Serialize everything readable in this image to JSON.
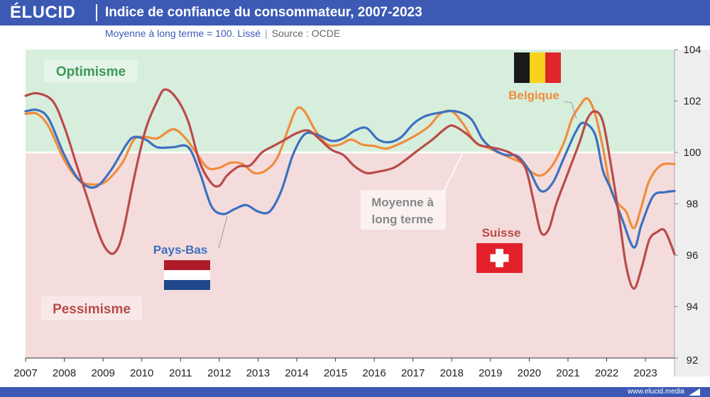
{
  "header": {
    "logo": "ÉLUCID",
    "title": "Indice de confiance du consommateur, 2007-2023",
    "subtitle": "Moyenne à long terme = 100. Lissé",
    "source": "Source : OCDE"
  },
  "footer": {
    "url": "www.elucid.media"
  },
  "colors": {
    "header": "#3c5ab4",
    "optimism_zone": "#d7eedc",
    "pessimism_zone": "#f4dcdc",
    "optimism_text": "#3a9a55",
    "pessimism_text": "#b94a4a",
    "mean_line": "#ffffff"
  },
  "chart_data": {
    "type": "line",
    "title": "Indice de confiance du consommateur, 2007-2023",
    "subtitle": "Moyenne à long terme = 100. Lissé",
    "xlim": [
      2007,
      2023.75
    ],
    "ylim": [
      92,
      104
    ],
    "x_ticks": [
      "2007",
      "2008",
      "2009",
      "2010",
      "2011",
      "2012",
      "2013",
      "2014",
      "2015",
      "2016",
      "2017",
      "2018",
      "2019",
      "2020",
      "2021",
      "2022",
      "2023"
    ],
    "y_ticks": [
      "92",
      "94",
      "96",
      "98",
      "100",
      "102",
      "104"
    ],
    "y_axis_side": "right",
    "grid": false,
    "reference_line": {
      "y": 100,
      "label_line1": "Moyenne à",
      "label_line2": "long terme"
    },
    "zones": [
      {
        "label": "Optimisme",
        "from": 100,
        "to": 104
      },
      {
        "label": "Pessimisme",
        "from": 92,
        "to": 100
      }
    ],
    "series": [
      {
        "name": "Belgique",
        "color": "#f08c3c",
        "flag": "belgium",
        "points": [
          [
            2007.0,
            101.5
          ],
          [
            2007.3,
            101.5
          ],
          [
            2007.6,
            101.0
          ],
          [
            2008.0,
            99.7
          ],
          [
            2008.4,
            98.9
          ],
          [
            2008.8,
            98.75
          ],
          [
            2009.1,
            98.9
          ],
          [
            2009.5,
            99.6
          ],
          [
            2009.8,
            100.5
          ],
          [
            2010.1,
            100.6
          ],
          [
            2010.4,
            100.55
          ],
          [
            2010.8,
            100.9
          ],
          [
            2011.1,
            100.6
          ],
          [
            2011.4,
            100.0
          ],
          [
            2011.7,
            99.4
          ],
          [
            2012.0,
            99.4
          ],
          [
            2012.3,
            99.6
          ],
          [
            2012.6,
            99.55
          ],
          [
            2012.9,
            99.2
          ],
          [
            2013.2,
            99.3
          ],
          [
            2013.5,
            99.8
          ],
          [
            2013.8,
            101.0
          ],
          [
            2014.0,
            101.7
          ],
          [
            2014.2,
            101.6
          ],
          [
            2014.5,
            100.8
          ],
          [
            2014.8,
            100.3
          ],
          [
            2015.1,
            100.3
          ],
          [
            2015.4,
            100.5
          ],
          [
            2015.7,
            100.3
          ],
          [
            2016.0,
            100.25
          ],
          [
            2016.3,
            100.15
          ],
          [
            2016.6,
            100.3
          ],
          [
            2017.0,
            100.6
          ],
          [
            2017.4,
            101.0
          ],
          [
            2017.7,
            101.5
          ],
          [
            2018.0,
            101.6
          ],
          [
            2018.3,
            101.1
          ],
          [
            2018.6,
            100.4
          ],
          [
            2018.9,
            100.2
          ],
          [
            2019.2,
            100.0
          ],
          [
            2019.5,
            99.8
          ],
          [
            2019.8,
            99.6
          ],
          [
            2020.0,
            99.3
          ],
          [
            2020.3,
            99.1
          ],
          [
            2020.6,
            99.5
          ],
          [
            2020.9,
            100.4
          ],
          [
            2021.1,
            101.3
          ],
          [
            2021.3,
            101.8
          ],
          [
            2021.5,
            102.1
          ],
          [
            2021.7,
            101.5
          ],
          [
            2021.9,
            100.2
          ],
          [
            2022.1,
            98.6
          ],
          [
            2022.3,
            98.0
          ],
          [
            2022.5,
            97.7
          ],
          [
            2022.7,
            97.05
          ],
          [
            2022.9,
            97.9
          ],
          [
            2023.1,
            98.9
          ],
          [
            2023.4,
            99.5
          ],
          [
            2023.75,
            99.55
          ]
        ]
      },
      {
        "name": "Pays-Bas",
        "color": "#3c70c0",
        "flag": "netherlands",
        "points": [
          [
            2007.0,
            101.6
          ],
          [
            2007.3,
            101.65
          ],
          [
            2007.6,
            101.3
          ],
          [
            2008.0,
            99.9
          ],
          [
            2008.4,
            98.9
          ],
          [
            2008.8,
            98.65
          ],
          [
            2009.2,
            99.3
          ],
          [
            2009.6,
            100.3
          ],
          [
            2009.8,
            100.6
          ],
          [
            2010.1,
            100.5
          ],
          [
            2010.4,
            100.2
          ],
          [
            2010.8,
            100.2
          ],
          [
            2011.2,
            100.2
          ],
          [
            2011.5,
            99.2
          ],
          [
            2011.8,
            97.9
          ],
          [
            2012.1,
            97.6
          ],
          [
            2012.4,
            97.8
          ],
          [
            2012.7,
            97.95
          ],
          [
            2013.0,
            97.7
          ],
          [
            2013.3,
            97.7
          ],
          [
            2013.6,
            98.5
          ],
          [
            2013.9,
            99.9
          ],
          [
            2014.2,
            100.7
          ],
          [
            2014.5,
            100.7
          ],
          [
            2014.9,
            100.45
          ],
          [
            2015.2,
            100.55
          ],
          [
            2015.5,
            100.85
          ],
          [
            2015.8,
            100.95
          ],
          [
            2016.1,
            100.5
          ],
          [
            2016.4,
            100.4
          ],
          [
            2016.7,
            100.6
          ],
          [
            2017.0,
            101.1
          ],
          [
            2017.3,
            101.4
          ],
          [
            2017.7,
            101.55
          ],
          [
            2018.1,
            101.6
          ],
          [
            2018.5,
            101.3
          ],
          [
            2018.8,
            100.5
          ],
          [
            2019.1,
            100.1
          ],
          [
            2019.4,
            99.9
          ],
          [
            2019.7,
            99.85
          ],
          [
            2020.0,
            99.3
          ],
          [
            2020.3,
            98.5
          ],
          [
            2020.6,
            98.8
          ],
          [
            2020.9,
            99.8
          ],
          [
            2021.2,
            100.8
          ],
          [
            2021.4,
            101.15
          ],
          [
            2021.7,
            100.7
          ],
          [
            2021.9,
            99.3
          ],
          [
            2022.1,
            98.6
          ],
          [
            2022.4,
            97.4
          ],
          [
            2022.7,
            96.3
          ],
          [
            2022.9,
            97.2
          ],
          [
            2023.2,
            98.3
          ],
          [
            2023.5,
            98.45
          ],
          [
            2023.75,
            98.5
          ]
        ]
      },
      {
        "name": "Suisse",
        "color": "#b94a4a",
        "flag": "switzerland",
        "points": [
          [
            2007.0,
            102.2
          ],
          [
            2007.3,
            102.3
          ],
          [
            2007.7,
            102.0
          ],
          [
            2008.0,
            101.0
          ],
          [
            2008.3,
            99.6
          ],
          [
            2008.6,
            98.2
          ],
          [
            2008.9,
            96.8
          ],
          [
            2009.1,
            96.2
          ],
          [
            2009.3,
            96.1
          ],
          [
            2009.5,
            96.8
          ],
          [
            2009.8,
            99.0
          ],
          [
            2010.1,
            100.9
          ],
          [
            2010.4,
            102.0
          ],
          [
            2010.6,
            102.45
          ],
          [
            2010.9,
            102.1
          ],
          [
            2011.2,
            101.2
          ],
          [
            2011.5,
            99.6
          ],
          [
            2011.8,
            98.8
          ],
          [
            2012.0,
            98.7
          ],
          [
            2012.2,
            99.1
          ],
          [
            2012.5,
            99.45
          ],
          [
            2012.8,
            99.5
          ],
          [
            2013.1,
            100.0
          ],
          [
            2013.4,
            100.25
          ],
          [
            2013.7,
            100.5
          ],
          [
            2014.0,
            100.75
          ],
          [
            2014.3,
            100.85
          ],
          [
            2014.6,
            100.5
          ],
          [
            2014.9,
            100.1
          ],
          [
            2015.2,
            99.9
          ],
          [
            2015.5,
            99.45
          ],
          [
            2015.8,
            99.2
          ],
          [
            2016.1,
            99.25
          ],
          [
            2016.5,
            99.4
          ],
          [
            2016.8,
            99.7
          ],
          [
            2017.1,
            100.05
          ],
          [
            2017.5,
            100.5
          ],
          [
            2017.9,
            101.0
          ],
          [
            2018.1,
            101.0
          ],
          [
            2018.4,
            100.7
          ],
          [
            2018.7,
            100.3
          ],
          [
            2019.0,
            100.2
          ],
          [
            2019.3,
            100.1
          ],
          [
            2019.6,
            99.9
          ],
          [
            2019.9,
            99.4
          ],
          [
            2020.1,
            98.2
          ],
          [
            2020.3,
            96.9
          ],
          [
            2020.5,
            97.0
          ],
          [
            2020.7,
            98.0
          ],
          [
            2021.0,
            99.2
          ],
          [
            2021.3,
            100.4
          ],
          [
            2021.5,
            101.3
          ],
          [
            2021.7,
            101.6
          ],
          [
            2021.9,
            101.2
          ],
          [
            2022.1,
            99.6
          ],
          [
            2022.3,
            97.7
          ],
          [
            2022.5,
            95.6
          ],
          [
            2022.7,
            94.7
          ],
          [
            2022.9,
            95.5
          ],
          [
            2023.1,
            96.6
          ],
          [
            2023.3,
            96.9
          ],
          [
            2023.5,
            96.95
          ],
          [
            2023.75,
            96.05
          ]
        ]
      }
    ]
  }
}
